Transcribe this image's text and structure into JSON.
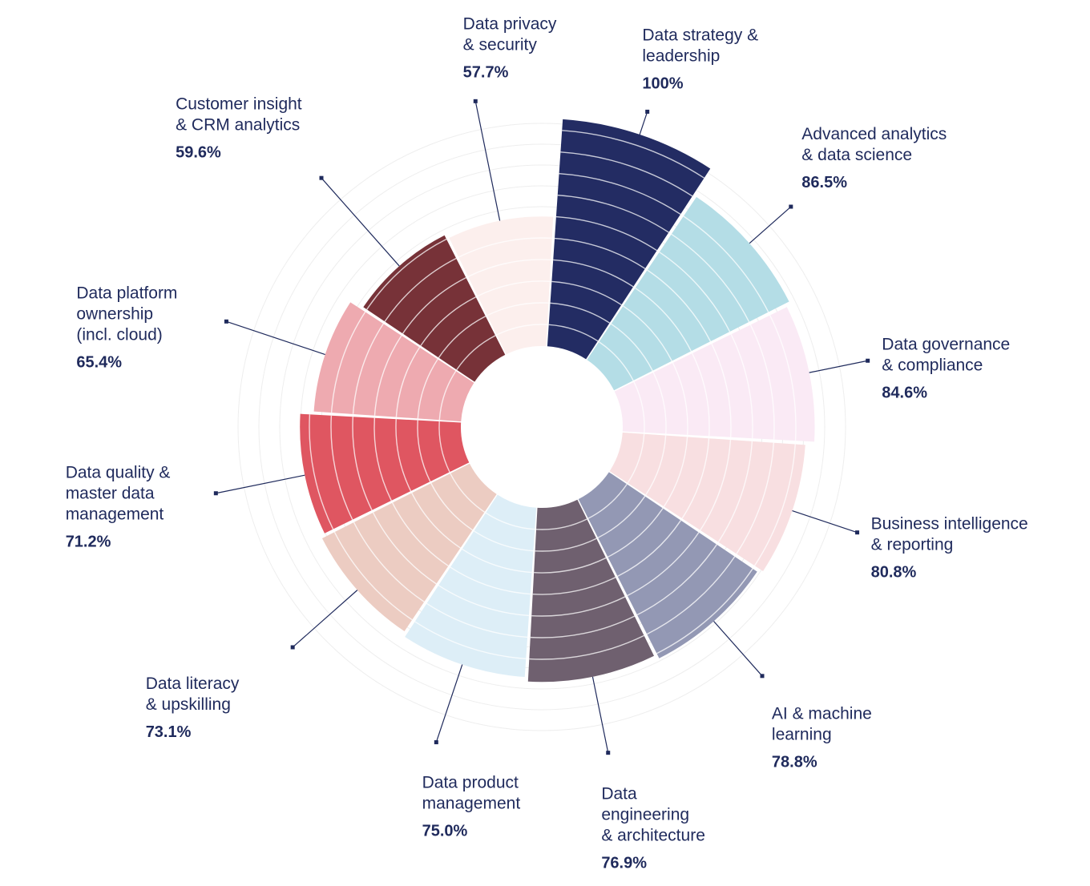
{
  "chart_data": {
    "type": "polar-bar",
    "title": "",
    "grid": true,
    "legend": "none",
    "rlim": [
      0,
      100
    ],
    "categories": [
      {
        "label": [
          "Data strategy &",
          "leadership"
        ],
        "value_label": "100%",
        "value": 100,
        "color": "#232c63"
      },
      {
        "label": [
          "Advanced analytics",
          "& data science"
        ],
        "value_label": "86.5%",
        "value": 86.5,
        "color": "#b4dde6"
      },
      {
        "label": [
          "Data governance",
          "& compliance"
        ],
        "value_label": "84.6%",
        "value": 84.6,
        "color": "#faeaf5"
      },
      {
        "label": [
          "Business intelligence",
          "& reporting"
        ],
        "value_label": "80.8%",
        "value": 80.8,
        "color": "#f8dfe1"
      },
      {
        "label": [
          "AI & machine",
          "learning"
        ],
        "value_label": "78.8%",
        "value": 78.8,
        "color": "#9398b4"
      },
      {
        "label": [
          "Data",
          "engineering",
          "& architecture"
        ],
        "value_label": "76.9%",
        "value": 76.9,
        "color": "#6f606f"
      },
      {
        "label": [
          "Data product",
          "management"
        ],
        "value_label": "75.0%",
        "value": 75.0,
        "color": "#ddeef7"
      },
      {
        "label": [
          "Data literacy",
          "& upskilling"
        ],
        "value_label": "73.1%",
        "value": 73.1,
        "color": "#ecccc2"
      },
      {
        "label": [
          "Data quality &",
          "master data",
          "management"
        ],
        "value_label": "71.2%",
        "value": 71.2,
        "color": "#df5661"
      },
      {
        "label": [
          "Data platform",
          "ownership",
          "(incl. cloud)"
        ],
        "value_label": "65.4%",
        "value": 65.4,
        "color": "#eeaab0"
      },
      {
        "label": [
          "Customer insight",
          "& CRM analytics"
        ],
        "value_label": "59.6%",
        "value": 59.6,
        "color": "#773238"
      },
      {
        "label": [
          "Data privacy",
          "& security"
        ],
        "value_label": "57.7%",
        "value": 57.7,
        "color": "#fcefed"
      }
    ]
  }
}
